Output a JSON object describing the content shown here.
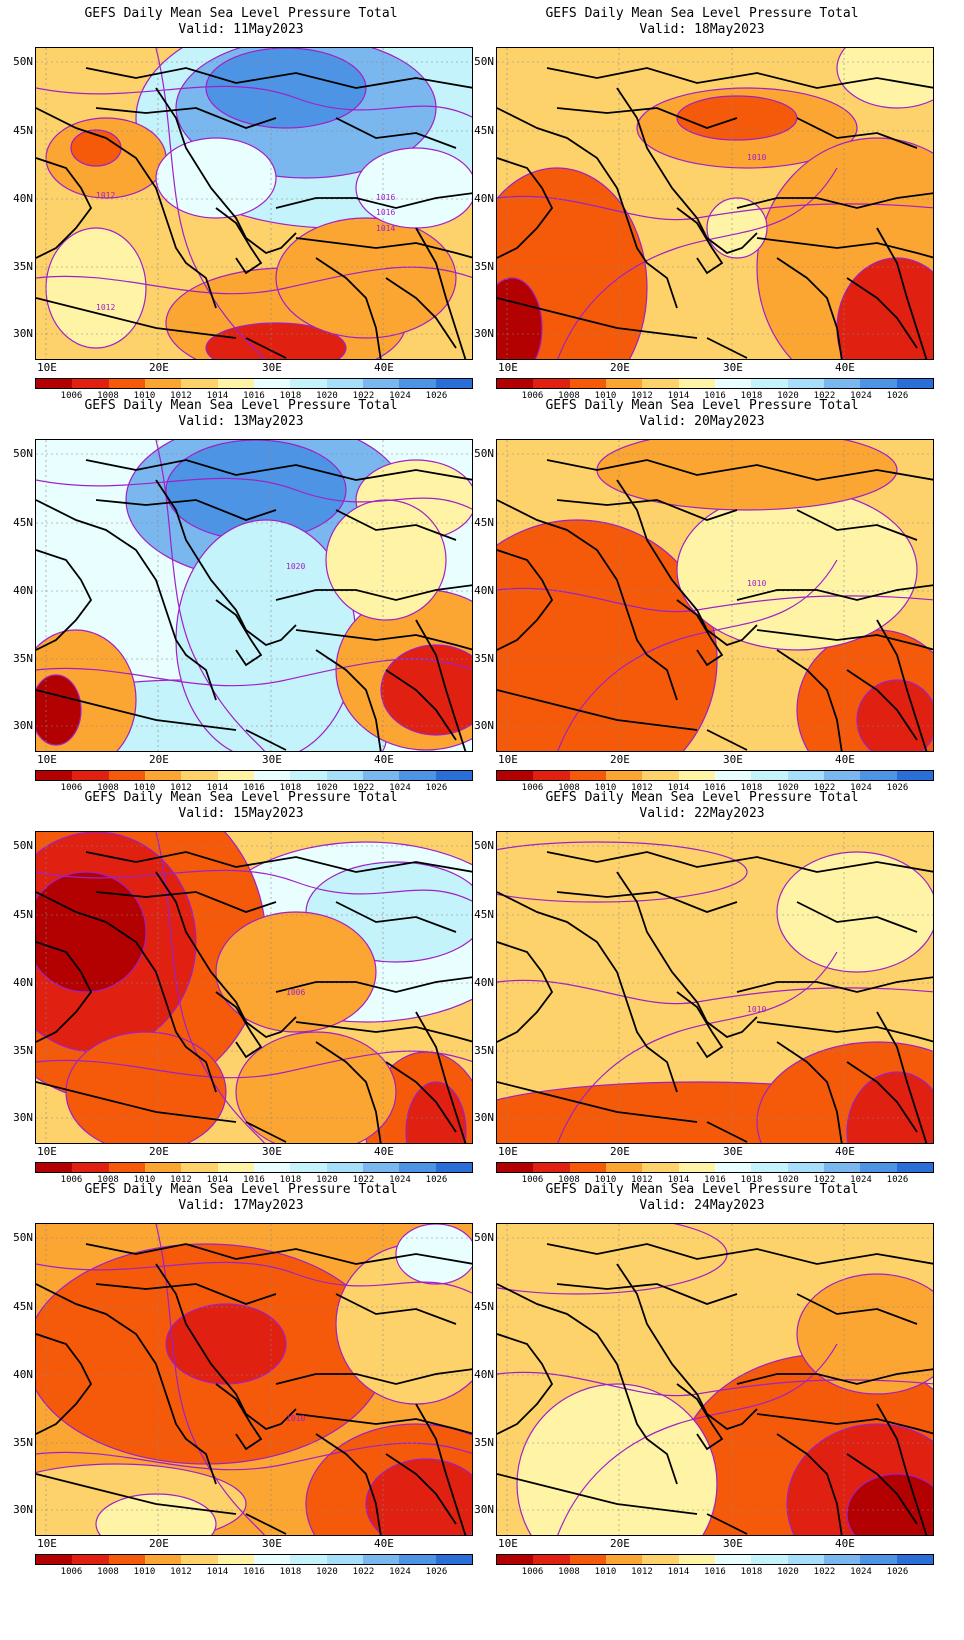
{
  "panels": [
    {
      "title": "GEFS Daily Mean Sea Level Pressure Total",
      "valid": "Valid: 11May2023",
      "contour_labels": [
        "1012",
        "1016",
        "1016",
        "1014",
        "1012"
      ]
    },
    {
      "title": "GEFS Daily Mean Sea Level Pressure Total",
      "valid": "Valid: 18May2023",
      "contour_labels": [
        "1010"
      ]
    },
    {
      "title": "GEFS Daily Mean Sea Level Pressure Total",
      "valid": "Valid: 13May2023",
      "contour_labels": [
        "1020"
      ]
    },
    {
      "title": "GEFS Daily Mean Sea Level Pressure Total",
      "valid": "Valid: 20May2023",
      "contour_labels": [
        "1010"
      ]
    },
    {
      "title": "GEFS Daily Mean Sea Level Pressure Total",
      "valid": "Valid: 15May2023",
      "contour_labels": [
        "1006"
      ]
    },
    {
      "title": "GEFS Daily Mean Sea Level Pressure Total",
      "valid": "Valid: 22May2023",
      "contour_labels": [
        "1010"
      ]
    },
    {
      "title": "GEFS Daily Mean Sea Level Pressure Total",
      "valid": "Valid: 17May2023",
      "contour_labels": [
        "1010"
      ]
    },
    {
      "title": "GEFS Daily Mean Sea Level Pressure Total",
      "valid": "Valid: 24May2023",
      "contour_labels": []
    }
  ],
  "lat_labels": [
    "50N",
    "45N",
    "40N",
    "35N",
    "30N"
  ],
  "lon_labels": [
    "10E",
    "20E",
    "30E",
    "40E"
  ],
  "colorbar": {
    "labels": [
      "1006",
      "1008",
      "1010",
      "1012",
      "1014",
      "1016",
      "1018",
      "1020",
      "1022",
      "1024",
      "1026"
    ],
    "colors": [
      "#b30000",
      "#e02010",
      "#f55a0a",
      "#fba533",
      "#fdd26a",
      "#fff3a6",
      "#e8feff",
      "#c4f3fb",
      "#a7defa",
      "#7ab7ef",
      "#4e94e4",
      "#2a6fd8"
    ]
  },
  "contour_color": "#a020c8",
  "coastline_color": "#000000"
}
